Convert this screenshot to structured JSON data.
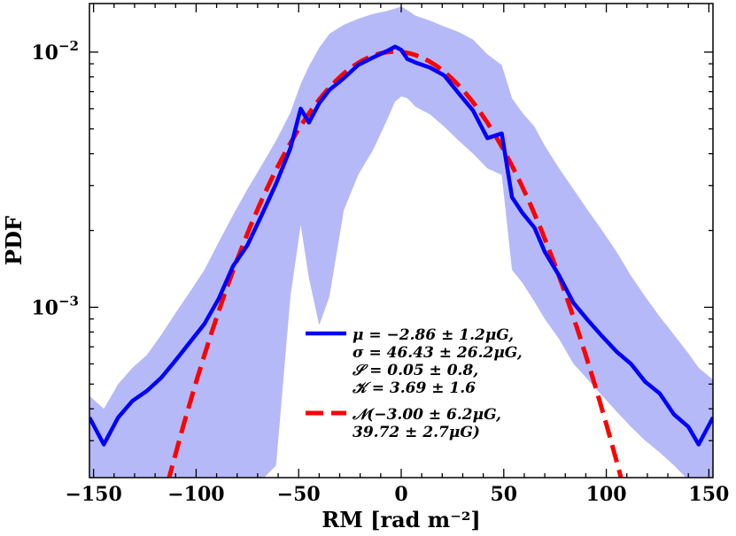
{
  "chart_data": {
    "type": "line",
    "xlabel": "RM [rad m⁻²]",
    "ylabel": "PDF",
    "xlim": [
      -152,
      152
    ],
    "ylim": [
      0.000215,
      0.0155
    ],
    "yscale": "log",
    "grid": false,
    "legend_position": "lower-center",
    "x_ticks": [
      -150,
      -100,
      -50,
      0,
      50,
      100,
      150
    ],
    "x_tick_labels": [
      "−150",
      "−100",
      "−50",
      "0",
      "50",
      "100",
      "150"
    ],
    "y_ticks": [
      0.001,
      0.01
    ],
    "y_tick_labels": [
      {
        "base": "10",
        "exp": "−3"
      },
      {
        "base": "10",
        "exp": "−2"
      }
    ],
    "series": [
      {
        "label_lines": [
          "μ = −2.86 ± 1.2μG,",
          "σ = 46.43 ± 26.2μG,",
          "𝒮 = 0.05 ± 0.8,",
          "𝒦 = 3.69 ± 1.6"
        ],
        "color": "#0000ff",
        "style": "solid",
        "x": [
          -152,
          -145,
          -138,
          -131,
          -124,
          -117,
          -110,
          -103,
          -96,
          -89,
          -82,
          -75,
          -68,
          -61,
          -54,
          -49,
          -45,
          -40,
          -35,
          -28,
          -21,
          -14,
          -7,
          -3,
          0,
          3,
          7,
          14,
          21,
          28,
          35,
          42,
          49,
          54,
          59,
          65,
          70,
          77,
          84,
          91,
          98,
          105,
          112,
          119,
          126,
          133,
          140,
          145,
          152
        ],
        "y": [
          0.00037,
          0.00029,
          0.00037,
          0.00043,
          0.00047,
          0.00053,
          0.00062,
          0.00073,
          0.00086,
          0.00108,
          0.00145,
          0.00175,
          0.0023,
          0.00305,
          0.0042,
          0.006,
          0.0053,
          0.0063,
          0.0071,
          0.0079,
          0.0089,
          0.0095,
          0.0101,
          0.0105,
          0.0102,
          0.0094,
          0.0091,
          0.0087,
          0.0081,
          0.0069,
          0.0059,
          0.0046,
          0.0048,
          0.0027,
          0.00235,
          0.00205,
          0.00165,
          0.00133,
          0.00104,
          0.00089,
          0.00077,
          0.00067,
          0.0006,
          0.00051,
          0.00046,
          0.00038,
          0.00034,
          0.00029,
          0.00037
        ]
      },
      {
        "label_lines": [
          "𝒩(−3.00 ± 6.2μG,",
          "39.72 ± 2.7μG)"
        ],
        "color": "#ff0000",
        "style": "dashed",
        "mu": -3.0,
        "sigma": 39.72,
        "x_range": [
          -120,
          113
        ]
      }
    ],
    "band": {
      "color": "#b6b9f7",
      "x": [
        -152,
        -145,
        -138,
        -131,
        -124,
        -117,
        -110,
        -103,
        -96,
        -89,
        -82,
        -75,
        -68,
        -61,
        -54,
        -49,
        -45,
        -40,
        -35,
        -28,
        -21,
        -14,
        -7,
        -3,
        0,
        3,
        7,
        14,
        21,
        28,
        35,
        42,
        49,
        54,
        59,
        65,
        70,
        77,
        84,
        91,
        98,
        105,
        112,
        119,
        126,
        133,
        140,
        145,
        152
      ],
      "upper": [
        0.00045,
        0.0004,
        0.0005,
        0.00058,
        0.00065,
        0.00078,
        0.00095,
        0.00115,
        0.0014,
        0.0018,
        0.0023,
        0.0029,
        0.0036,
        0.0045,
        0.0058,
        0.0075,
        0.0088,
        0.0104,
        0.0118,
        0.0128,
        0.0135,
        0.0141,
        0.0145,
        0.0148,
        0.0151,
        0.0146,
        0.0139,
        0.0133,
        0.0126,
        0.012,
        0.0112,
        0.0098,
        0.0089,
        0.0066,
        0.0058,
        0.0051,
        0.0043,
        0.0035,
        0.0029,
        0.0024,
        0.002,
        0.00165,
        0.00133,
        0.0011,
        0.00092,
        0.00078,
        0.00066,
        0.00058,
        0.00052
      ],
      "lower": [
        0.00021,
        0.00021,
        0.00021,
        0.00021,
        0.00021,
        0.00021,
        0.00021,
        0.00021,
        0.00021,
        0.00021,
        0.00021,
        0.00021,
        0.00021,
        0.00024,
        0.0011,
        0.0021,
        0.0013,
        0.00085,
        0.0011,
        0.0024,
        0.0033,
        0.0041,
        0.0054,
        0.0064,
        0.0067,
        0.0066,
        0.0061,
        0.0057,
        0.0051,
        0.0045,
        0.004,
        0.0035,
        0.0033,
        0.0014,
        0.00125,
        0.00105,
        0.0009,
        0.00075,
        0.0006,
        0.00052,
        0.00045,
        0.00039,
        0.00034,
        0.0003,
        0.00027,
        0.00024,
        0.00021,
        0.00021,
        0.00021
      ]
    }
  }
}
